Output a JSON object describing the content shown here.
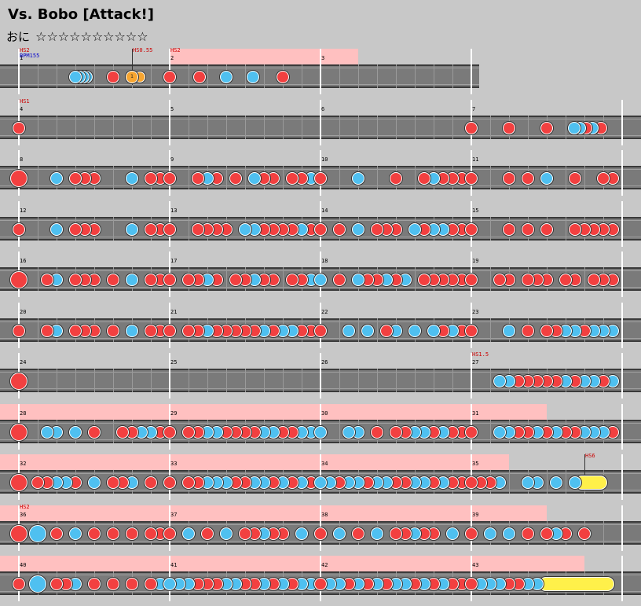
{
  "song": {
    "title": "Vs. Bobo [Attack!]"
  },
  "difficulty": {
    "label": "おに",
    "stars": "☆☆☆☆☆☆☆☆☆☆"
  },
  "chart": {
    "measures_per_row": 4,
    "rows": [
      {
        "first_measure": 1,
        "measure_count": 3,
        "annotations": [
          {
            "measure_offset": 0,
            "lines": [
              {
                "text": "HS2",
                "color": "red"
              },
              {
                "text": "BPM155",
                "color": "blue"
              }
            ]
          },
          {
            "measure_offset": 0.75,
            "lines": [
              {
                "text": "HS0.55",
                "color": "red"
              }
            ],
            "marker": true
          },
          {
            "measure_offset": 1,
            "lines": [
              {
                "text": "HS2",
                "color": "red"
              }
            ]
          }
        ],
        "gogo": [
          [
            1,
            2.25
          ]
        ],
        "notes": "m0:0.375k,0.4k,0.425k,0.45k,0.625d;b0.75-0.85:1;m1:0d,0.2d,0.375k,0.55k,0.75d"
      },
      {
        "first_measure": 4,
        "measure_count": 4,
        "annotations": [
          {
            "measure_offset": 0,
            "lines": [
              {
                "text": "HS1",
                "color": "red"
              }
            ]
          }
        ],
        "gogo": [],
        "notes": "m0:0d;m3:0d,0.25d,0.5d,0.68k,0.72k,0.76d,0.8k,0.86d"
      },
      {
        "first_measure": 8,
        "measure_count": 4,
        "annotations": [],
        "gogo": [],
        "notes": "m0:0D,0.25k,0.375d,0.4375d,0.5d,0.75k,0.875d,0.9375d;m1:0d,0.1875d,0.25k,0.3125d,0.4375d,0.5625k,0.625d,0.6875d,0.8125d,0.875d,0.9375k;m2:0d,0.25k,0.5d,0.6875d,0.75k,0.8125d,0.875d,0.9375d;m3:0d,0.25d,0.375d,0.5k,0.6875d,0.875d,0.9375d"
      },
      {
        "first_measure": 12,
        "measure_count": 4,
        "annotations": [],
        "gogo": [],
        "notes": "m0:0d,0.25k,0.375d,0.4375d,0.5d,0.75k,0.875d,0.9375d;m1:0d,0.1875d,0.25d,0.3125d,0.375d,0.5k,0.5625k,0.625d,0.6875d,0.75d,0.8125d,0.875k,0.9375d;m2:0d,0.125d,0.25k,0.375d,0.4375d,0.5d,0.625k,0.6875d,0.75k,0.8125k,0.875d,0.9375d;m3:0d,0.25d,0.375d,0.5d,0.6875d,0.75d,0.8125d,0.875d,0.9375d"
      },
      {
        "first_measure": 16,
        "measure_count": 4,
        "annotations": [],
        "gogo": [],
        "notes": "m0:0D,0.1875d,0.25k,0.375d,0.4375d,0.5d,0.625d,0.75k,0.875d,0.9375d;m1:0d,0.125d,0.1875d,0.25k,0.3125d,0.4375d,0.5d,0.5625k,0.625d,0.6875d,0.8125d,0.875d,0.9375k;m2:0k,0.125d,0.25k,0.3125d,0.375d,0.4375k,0.5d,0.5625k,0.6875d,0.75d,0.8125d,0.875d,0.9375d;m3:0d,0.1875d,0.25d,0.375d,0.4375d,0.5d,0.625d,0.6875d,0.8125d,0.875d,0.9375d"
      },
      {
        "first_measure": 20,
        "measure_count": 4,
        "annotations": [],
        "gogo": [],
        "notes": "m0:0d,0.1875d,0.25k,0.375d,0.4375d,0.5d,0.625d,0.75k,0.875d,0.9375d;m1:0d,0.125d,0.1875d,0.25k,0.3125d,0.375d,0.4375d,0.5d,0.5625d,0.625k,0.6875d,0.75k,0.8125k,0.875d,0.9375d;m2:0d,0.1875k,0.3125k,0.4375d,0.5k,0.625k,0.75k,0.8125d,0.875k,0.9375d;m3:0d,0.25k,0.375d,0.5d,0.5625d,0.625k,0.6875k,0.75d,0.8125k,0.875k,0.9375k"
      },
      {
        "first_measure": 24,
        "measure_count": 4,
        "annotations": [
          {
            "measure_offset": 3,
            "lines": [
              {
                "text": "HS1.5",
                "color": "red"
              }
            ]
          }
        ],
        "gogo": [],
        "notes": "m0:0D;m3:0.1875k,0.25k,0.3125d,0.375d,0.4375d,0.5d,0.5625d,0.625k,0.6875d,0.75k,0.8125k,0.875d,0.9375k"
      },
      {
        "first_measure": 28,
        "measure_count": 4,
        "annotations": [],
        "gogo": [
          [
            0,
            3.5
          ]
        ],
        "notes": "m0:0D,0.1875k,0.25k,0.375k,0.5d,0.6875d,0.75d,0.8125k,0.875k,0.9375d;m1:0d,0.125d,0.1875d,0.25k,0.3125k,0.375d,0.4375d,0.5d,0.5625d,0.625k,0.6875k,0.75d,0.8125d,0.875k,0.9375k;m2:0k,0.1875k,0.25k,0.375d,0.5d,0.5625d,0.625k,0.6875k,0.75d,0.8125k,0.875d,0.9375d;m3:0d,0.1875k,0.25k,0.3125d,0.375d,0.4375k,0.5d,0.5625k,0.625d,0.6875d,0.75k,0.8125k,0.875k,0.9375d"
      },
      {
        "first_measure": 32,
        "measure_count": 4,
        "annotations": [
          {
            "measure_offset": 3.75,
            "lines": [
              {
                "text": "HS6",
                "color": "red"
              }
            ],
            "marker": true
          }
        ],
        "gogo": [
          [
            0,
            3.25
          ]
        ],
        "notes": "m0:0D,0.125d,0.1875d,0.25k,0.3125k,0.375d,0.5k,0.625d,0.6875d,0.75k,0.875d;m1:0d,0.125d,0.1875d,0.25k,0.3125k,0.375k,0.4375d,0.5d,0.5625k,0.625k,0.6875d,0.75k,0.8125d,0.875k,0.9375d;m2:0k,0.0625k,0.125d,0.1875k,0.25k,0.3125d,0.375k,0.4375k,0.5d,0.5625d,0.625k,0.6875k,0.75d,0.8125k,0.875d,0.9375d;m3:0d,0.0625d,0.125d,0.1875k,0.375k,0.4375k,0.5625k,0.6875k;r3.6875-3.9:k"
      },
      {
        "first_measure": 36,
        "measure_count": 4,
        "annotations": [
          {
            "measure_offset": 0,
            "lines": [
              {
                "text": "HS2",
                "color": "red"
              }
            ]
          }
        ],
        "gogo": [
          [
            0,
            3.5
          ]
        ],
        "notes": "m0:0D,0.125K,0.25d,0.375k,0.5d,0.625d,0.75d,0.875d,0.9375d;m1:0d,0.125k,0.25d,0.375k,0.5d,0.5625d,0.625k,0.6875d,0.75d,0.875k;m2:0d,0.125k,0.25d,0.375k,0.5d,0.5625d,0.625k,0.6875d,0.75d,0.875k;m3:0d,0.125k,0.25k,0.375d,0.5d,0.5625k,0.625d,0.75d"
      },
      {
        "first_measure": 40,
        "measure_count": 4,
        "annotations": [],
        "gogo": [
          [
            0,
            3.75
          ]
        ],
        "notes": "m0:0d,0.125K,0.25d,0.3125d,0.375k,0.5d,0.625d,0.75d,0.875d,0.9375k;m1:0k,0.0625k,0.125k,0.1875d,0.25d,0.3125d,0.375k,0.4375k,0.5d,0.5625d,0.625k,0.6875d,0.75k,0.8125d,0.875k,0.9375k;m2:0d,0.0625k,0.125k,0.1875d,0.25k,0.3125d,0.375k,0.4375d,0.5k,0.5625k,0.625d,0.6875k,0.75d,0.8125k,0.875d,0.9375d;m3:0d,0.0625k,0.125k,0.1875k,0.25d,0.3125d,0.375k,0.4375k;r3.45-3.95:d"
      }
    ]
  },
  "colors": {
    "don": "#f24040",
    "ka": "#4fc0f0",
    "roll": "#fff04a",
    "balloon": "#f7a530",
    "gogo": "#ffc0c0",
    "lane": "#7a7a7a"
  }
}
